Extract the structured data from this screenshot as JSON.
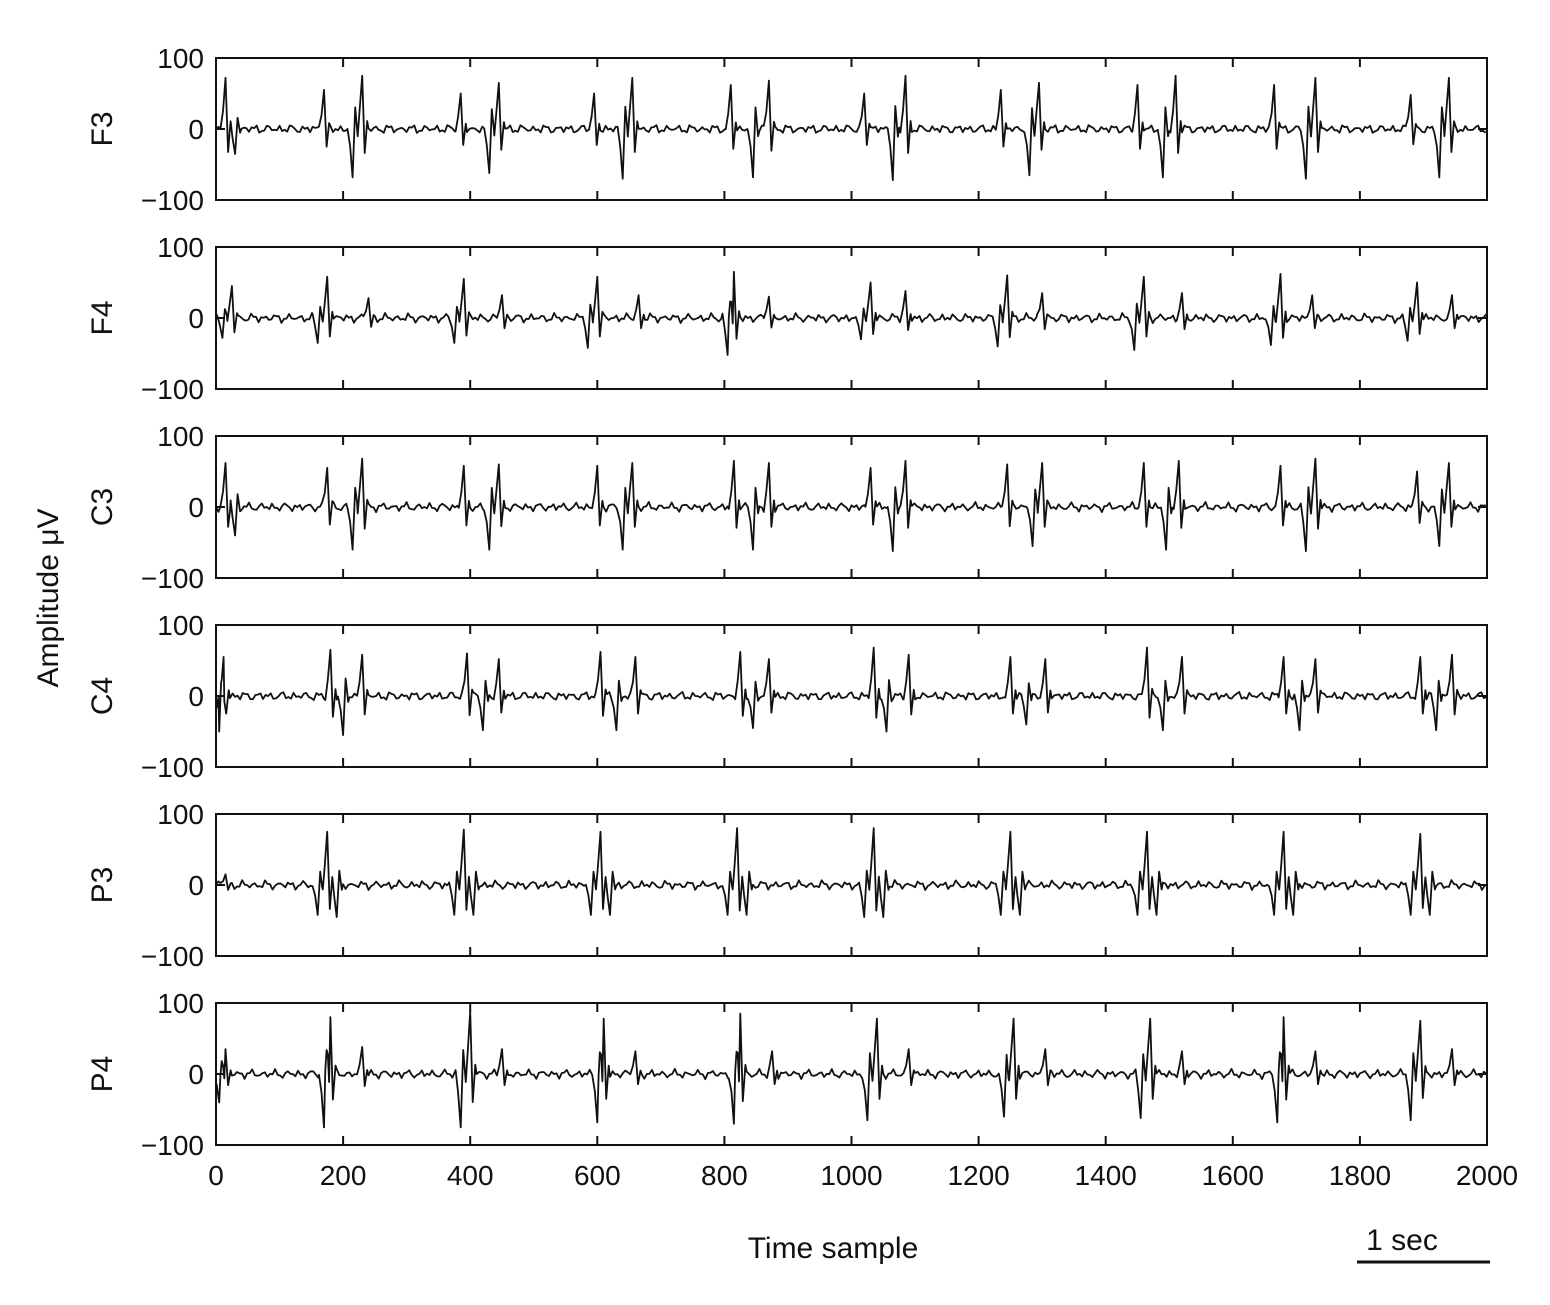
{
  "chart_data": {
    "type": "line",
    "ylabel": "Amplitude μV",
    "xlabel": "Time sample",
    "scale_bar_label": "1 sec",
    "xlim": [
      0,
      2000
    ],
    "ylim": [
      -100,
      100
    ],
    "xticks": [
      0,
      200,
      400,
      600,
      800,
      1000,
      1200,
      1400,
      1600,
      1800,
      2000
    ],
    "yticks": [
      -100,
      0,
      100
    ],
    "ytick_labels": [
      "−100",
      "0",
      "100"
    ],
    "grid": false,
    "burst_onsets": [
      0,
      170,
      385,
      595,
      810,
      1020,
      1235,
      1450,
      1665,
      1880
    ],
    "channels": [
      {
        "name": "F3",
        "peaks": [
          {
            "x": 15,
            "y": 72
          },
          {
            "x": 30,
            "y": -35
          },
          {
            "x": 170,
            "y": 55
          },
          {
            "x": 215,
            "y": -68
          },
          {
            "x": 230,
            "y": 75
          },
          {
            "x": 385,
            "y": 50
          },
          {
            "x": 430,
            "y": -62
          },
          {
            "x": 445,
            "y": 65
          },
          {
            "x": 595,
            "y": 50
          },
          {
            "x": 640,
            "y": -70
          },
          {
            "x": 655,
            "y": 72
          },
          {
            "x": 810,
            "y": 62
          },
          {
            "x": 845,
            "y": -68
          },
          {
            "x": 870,
            "y": 68
          },
          {
            "x": 1020,
            "y": 50
          },
          {
            "x": 1065,
            "y": -72
          },
          {
            "x": 1085,
            "y": 75
          },
          {
            "x": 1235,
            "y": 55
          },
          {
            "x": 1280,
            "y": -65
          },
          {
            "x": 1295,
            "y": 65
          },
          {
            "x": 1450,
            "y": 62
          },
          {
            "x": 1490,
            "y": -68
          },
          {
            "x": 1510,
            "y": 75
          },
          {
            "x": 1665,
            "y": 62
          },
          {
            "x": 1715,
            "y": -70
          },
          {
            "x": 1730,
            "y": 72
          },
          {
            "x": 1880,
            "y": 48
          },
          {
            "x": 1925,
            "y": -68
          },
          {
            "x": 1940,
            "y": 72
          }
        ]
      },
      {
        "name": "F4",
        "peaks": [
          {
            "x": 25,
            "y": 45
          },
          {
            "x": 10,
            "y": -28
          },
          {
            "x": 175,
            "y": 58
          },
          {
            "x": 160,
            "y": -35
          },
          {
            "x": 240,
            "y": 28
          },
          {
            "x": 390,
            "y": 55
          },
          {
            "x": 375,
            "y": -35
          },
          {
            "x": 450,
            "y": 32
          },
          {
            "x": 600,
            "y": 58
          },
          {
            "x": 585,
            "y": -42
          },
          {
            "x": 665,
            "y": 32
          },
          {
            "x": 815,
            "y": 65
          },
          {
            "x": 805,
            "y": -52
          },
          {
            "x": 870,
            "y": 30
          },
          {
            "x": 1030,
            "y": 50
          },
          {
            "x": 1015,
            "y": -30
          },
          {
            "x": 1085,
            "y": 38
          },
          {
            "x": 1245,
            "y": 60
          },
          {
            "x": 1230,
            "y": -40
          },
          {
            "x": 1300,
            "y": 35
          },
          {
            "x": 1460,
            "y": 58
          },
          {
            "x": 1445,
            "y": -45
          },
          {
            "x": 1520,
            "y": 35
          },
          {
            "x": 1675,
            "y": 62
          },
          {
            "x": 1660,
            "y": -38
          },
          {
            "x": 1725,
            "y": 32
          },
          {
            "x": 1890,
            "y": 50
          },
          {
            "x": 1875,
            "y": -32
          },
          {
            "x": 1945,
            "y": 32
          }
        ]
      },
      {
        "name": "C3",
        "peaks": [
          {
            "x": 15,
            "y": 62
          },
          {
            "x": 30,
            "y": -40
          },
          {
            "x": 175,
            "y": 55
          },
          {
            "x": 215,
            "y": -60
          },
          {
            "x": 230,
            "y": 68
          },
          {
            "x": 390,
            "y": 58
          },
          {
            "x": 430,
            "y": -60
          },
          {
            "x": 445,
            "y": 60
          },
          {
            "x": 600,
            "y": 58
          },
          {
            "x": 640,
            "y": -60
          },
          {
            "x": 655,
            "y": 62
          },
          {
            "x": 815,
            "y": 65
          },
          {
            "x": 845,
            "y": -60
          },
          {
            "x": 870,
            "y": 62
          },
          {
            "x": 1030,
            "y": 55
          },
          {
            "x": 1065,
            "y": -62
          },
          {
            "x": 1085,
            "y": 65
          },
          {
            "x": 1245,
            "y": 60
          },
          {
            "x": 1285,
            "y": -55
          },
          {
            "x": 1300,
            "y": 62
          },
          {
            "x": 1460,
            "y": 62
          },
          {
            "x": 1495,
            "y": -60
          },
          {
            "x": 1515,
            "y": 65
          },
          {
            "x": 1675,
            "y": 58
          },
          {
            "x": 1715,
            "y": -62
          },
          {
            "x": 1730,
            "y": 68
          },
          {
            "x": 1890,
            "y": 50
          },
          {
            "x": 1925,
            "y": -55
          },
          {
            "x": 1940,
            "y": 62
          }
        ]
      },
      {
        "name": "C4",
        "peaks": [
          {
            "x": 12,
            "y": 55
          },
          {
            "x": 5,
            "y": -50
          },
          {
            "x": 180,
            "y": 65
          },
          {
            "x": 200,
            "y": -55
          },
          {
            "x": 230,
            "y": 58
          },
          {
            "x": 395,
            "y": 60
          },
          {
            "x": 420,
            "y": -48
          },
          {
            "x": 445,
            "y": 52
          },
          {
            "x": 605,
            "y": 62
          },
          {
            "x": 630,
            "y": -48
          },
          {
            "x": 660,
            "y": 55
          },
          {
            "x": 825,
            "y": 62
          },
          {
            "x": 845,
            "y": -45
          },
          {
            "x": 870,
            "y": 52
          },
          {
            "x": 1035,
            "y": 68
          },
          {
            "x": 1055,
            "y": -50
          },
          {
            "x": 1090,
            "y": 58
          },
          {
            "x": 1250,
            "y": 55
          },
          {
            "x": 1275,
            "y": -40
          },
          {
            "x": 1305,
            "y": 52
          },
          {
            "x": 1465,
            "y": 68
          },
          {
            "x": 1490,
            "y": -48
          },
          {
            "x": 1520,
            "y": 55
          },
          {
            "x": 1680,
            "y": 55
          },
          {
            "x": 1705,
            "y": -48
          },
          {
            "x": 1730,
            "y": 52
          },
          {
            "x": 1895,
            "y": 55
          },
          {
            "x": 1920,
            "y": -48
          },
          {
            "x": 1945,
            "y": 58
          }
        ]
      },
      {
        "name": "P3",
        "peaks": [
          {
            "x": 15,
            "y": 15
          },
          {
            "x": 175,
            "y": 75
          },
          {
            "x": 160,
            "y": -42
          },
          {
            "x": 190,
            "y": -45
          },
          {
            "x": 390,
            "y": 78
          },
          {
            "x": 375,
            "y": -42
          },
          {
            "x": 405,
            "y": -42
          },
          {
            "x": 605,
            "y": 75
          },
          {
            "x": 590,
            "y": -42
          },
          {
            "x": 620,
            "y": -42
          },
          {
            "x": 820,
            "y": 80
          },
          {
            "x": 805,
            "y": -42
          },
          {
            "x": 835,
            "y": -42
          },
          {
            "x": 1035,
            "y": 80
          },
          {
            "x": 1020,
            "y": -45
          },
          {
            "x": 1050,
            "y": -45
          },
          {
            "x": 1250,
            "y": 75
          },
          {
            "x": 1235,
            "y": -42
          },
          {
            "x": 1265,
            "y": -42
          },
          {
            "x": 1465,
            "y": 75
          },
          {
            "x": 1450,
            "y": -42
          },
          {
            "x": 1480,
            "y": -42
          },
          {
            "x": 1680,
            "y": 75
          },
          {
            "x": 1665,
            "y": -42
          },
          {
            "x": 1695,
            "y": -42
          },
          {
            "x": 1895,
            "y": 72
          },
          {
            "x": 1880,
            "y": -42
          },
          {
            "x": 1910,
            "y": -42
          }
        ]
      },
      {
        "name": "P4",
        "peaks": [
          {
            "x": 15,
            "y": 35
          },
          {
            "x": 5,
            "y": -40
          },
          {
            "x": 180,
            "y": 80
          },
          {
            "x": 170,
            "y": -75
          },
          {
            "x": 230,
            "y": 38
          },
          {
            "x": 400,
            "y": 88
          },
          {
            "x": 385,
            "y": -75
          },
          {
            "x": 450,
            "y": 35
          },
          {
            "x": 610,
            "y": 78
          },
          {
            "x": 600,
            "y": -68
          },
          {
            "x": 660,
            "y": 32
          },
          {
            "x": 825,
            "y": 85
          },
          {
            "x": 815,
            "y": -70
          },
          {
            "x": 875,
            "y": 32
          },
          {
            "x": 1040,
            "y": 78
          },
          {
            "x": 1025,
            "y": -65
          },
          {
            "x": 1090,
            "y": 35
          },
          {
            "x": 1255,
            "y": 78
          },
          {
            "x": 1240,
            "y": -60
          },
          {
            "x": 1305,
            "y": 35
          },
          {
            "x": 1470,
            "y": 78
          },
          {
            "x": 1455,
            "y": -62
          },
          {
            "x": 1520,
            "y": 32
          },
          {
            "x": 1680,
            "y": 80
          },
          {
            "x": 1670,
            "y": -68
          },
          {
            "x": 1730,
            "y": 32
          },
          {
            "x": 1895,
            "y": 75
          },
          {
            "x": 1880,
            "y": -65
          },
          {
            "x": 1945,
            "y": 35
          }
        ]
      }
    ]
  }
}
